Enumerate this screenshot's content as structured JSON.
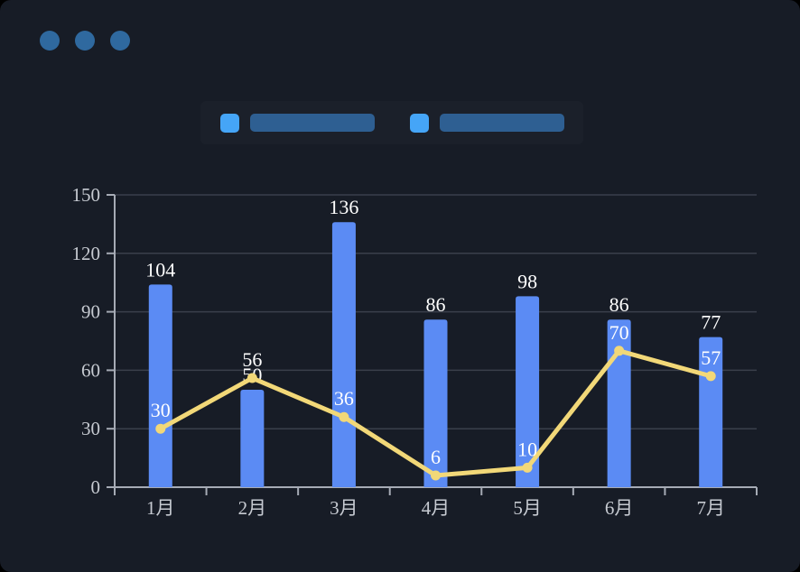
{
  "window": {
    "background": "#171c26",
    "dot_color": "#2f699f",
    "dots": [
      "window-dot-1",
      "window-dot-2",
      "window-dot-3"
    ]
  },
  "legend": {
    "items": [
      {
        "marker_color": "#45a5f7",
        "label_bar_color": "#2e5f92",
        "label_text": ""
      },
      {
        "marker_color": "#45a5f7",
        "label_bar_color": "#2e5f92",
        "label_text": ""
      }
    ]
  },
  "chart_data": {
    "type": "bar",
    "subtype": "bar+line combo",
    "title": "",
    "xlabel": "",
    "ylabel": "",
    "categories": [
      "1月",
      "2月",
      "3月",
      "4月",
      "5月",
      "6月",
      "7月"
    ],
    "series": [
      {
        "name": "bar-series",
        "type": "bar",
        "color": "#5b8bf4",
        "values": [
          104,
          50,
          136,
          86,
          98,
          86,
          77
        ],
        "labels": [
          104,
          50,
          136,
          86,
          98,
          86,
          77
        ]
      },
      {
        "name": "line-series",
        "type": "line",
        "color": "#f2d878",
        "values": [
          30,
          56,
          36,
          6,
          10,
          70,
          57
        ],
        "labels": [
          30,
          56,
          36,
          6,
          10,
          70,
          57
        ]
      }
    ],
    "ylim": [
      0,
      150
    ],
    "yticks": [
      0,
      30,
      60,
      90,
      120,
      150
    ],
    "grid": true,
    "legend_position": "top",
    "label_color": "#ffffff",
    "axis_line_color": "#a6abb5",
    "axis_text_color": "#c6cad1",
    "grid_color": "#3a3f4b"
  }
}
